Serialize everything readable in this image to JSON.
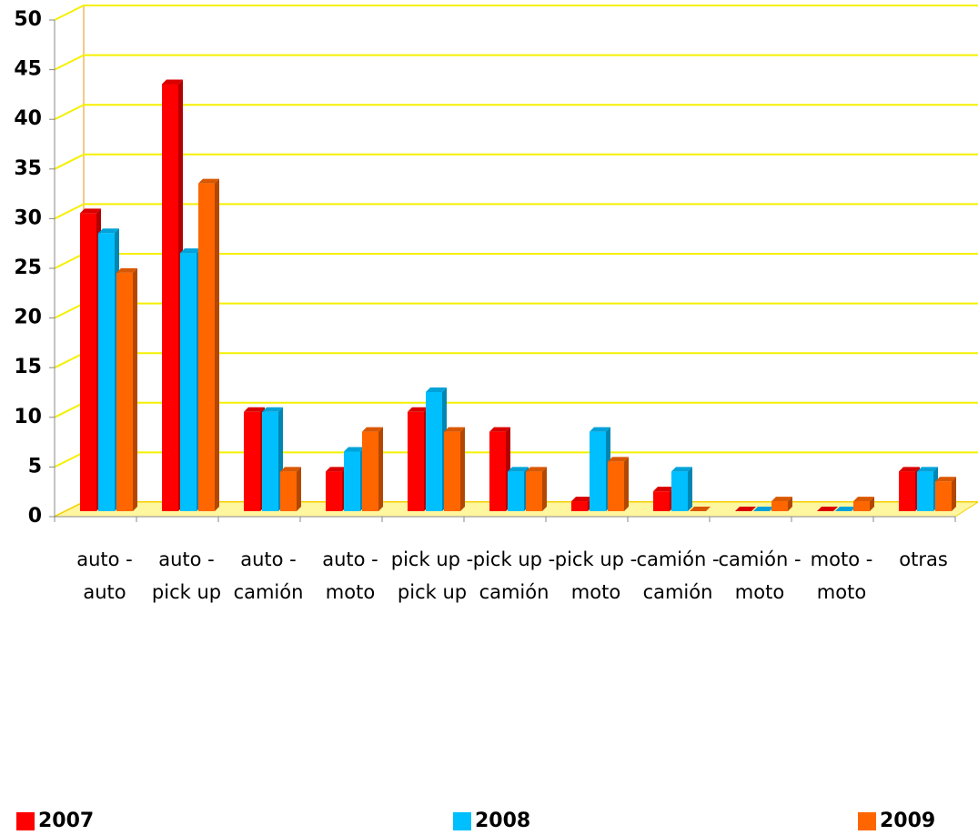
{
  "chart_data": {
    "type": "bar3d",
    "categories": [
      "auto - auto",
      "auto - pick up",
      "auto - camión",
      "auto - moto",
      "pick up - pick up",
      "pick up - camión",
      "pick up - moto",
      "camión - camión",
      "camión - moto",
      "moto - moto",
      "otras"
    ],
    "series": [
      {
        "name": "2007",
        "color": "#ff0000",
        "values": [
          30,
          43,
          10,
          4,
          10,
          8,
          1,
          2,
          0,
          0,
          4
        ]
      },
      {
        "name": "2008",
        "color": "#00bfff",
        "values": [
          28,
          26,
          10,
          6,
          12,
          4,
          8,
          4,
          0,
          0,
          4
        ]
      },
      {
        "name": "2009",
        "color": "#ff6600",
        "values": [
          24,
          33,
          4,
          8,
          8,
          4,
          5,
          0,
          1,
          1,
          3
        ]
      }
    ],
    "ylim": [
      0,
      50
    ],
    "yticks": [
      0,
      5,
      10,
      15,
      20,
      25,
      30,
      35,
      40,
      45,
      50
    ],
    "grid": true,
    "legend": "bottom"
  }
}
